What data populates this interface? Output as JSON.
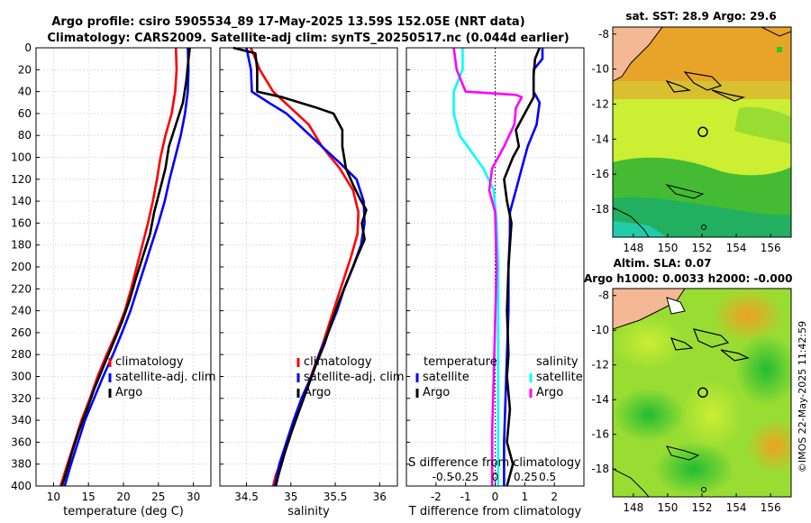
{
  "header": {
    "line1": "Argo profile: csiro 5905534_89 17-May-2025 13.59S 152.05E (NRT data)",
    "line2": "Climatology: CARS2009. Satellite-adj clim: synTS_20250517.nc (0.044d earlier)"
  },
  "side_label": "©IMOS 22-May-2025 11:42:59",
  "colors": {
    "climatology": "#ff0000",
    "satellite": "#0000ff",
    "argo": "#000000",
    "salinity_sat": "#00ffff",
    "salinity_argo": "#ff00ff",
    "land": "#f5b895",
    "map_green": "#44cc22",
    "map_yellow": "#ccee33",
    "map_orange": "#f0a020",
    "map_teal": "#22bb88"
  },
  "chart_data": [
    {
      "type": "line",
      "id": "temperature",
      "xlabel": "temperature (deg C)",
      "ylim": [
        0,
        400
      ],
      "xlim": [
        7.5,
        32.5
      ],
      "xticks": [
        10,
        15,
        20,
        25,
        30
      ],
      "yticks": [
        0,
        20,
        40,
        60,
        80,
        100,
        120,
        140,
        160,
        180,
        200,
        220,
        240,
        260,
        280,
        300,
        320,
        340,
        360,
        380,
        400
      ],
      "legend": [
        "climatology",
        "satellite-adj. clim",
        "Argo"
      ],
      "series": [
        {
          "name": "climatology",
          "color": "#ff0000",
          "points": [
            [
              27.5,
              0
            ],
            [
              27.6,
              20
            ],
            [
              27.4,
              40
            ],
            [
              26.9,
              60
            ],
            [
              26.0,
              80
            ],
            [
              25.3,
              100
            ],
            [
              24.8,
              120
            ],
            [
              24.2,
              140
            ],
            [
              23.5,
              160
            ],
            [
              22.7,
              180
            ],
            [
              21.9,
              200
            ],
            [
              21.1,
              220
            ],
            [
              20.2,
              240
            ],
            [
              19.0,
              260
            ],
            [
              17.6,
              280
            ],
            [
              16.3,
              300
            ],
            [
              15.2,
              320
            ],
            [
              14.0,
              340
            ],
            [
              13.0,
              360
            ],
            [
              12.0,
              380
            ],
            [
              11.0,
              400
            ]
          ]
        },
        {
          "name": "satellite-adj. clim",
          "color": "#0000ff",
          "points": [
            [
              29.2,
              0
            ],
            [
              29.3,
              20
            ],
            [
              29.2,
              40
            ],
            [
              28.8,
              60
            ],
            [
              28.2,
              80
            ],
            [
              27.4,
              100
            ],
            [
              26.6,
              120
            ],
            [
              25.9,
              140
            ],
            [
              25.0,
              160
            ],
            [
              24.0,
              180
            ],
            [
              23.0,
              200
            ],
            [
              22.0,
              220
            ],
            [
              21.0,
              240
            ],
            [
              19.8,
              260
            ],
            [
              18.5,
              280
            ],
            [
              17.1,
              300
            ],
            [
              15.8,
              320
            ],
            [
              14.5,
              340
            ],
            [
              13.5,
              360
            ],
            [
              12.5,
              380
            ],
            [
              11.6,
              400
            ]
          ]
        },
        {
          "name": "Argo",
          "color": "#000000",
          "points": [
            [
              29.5,
              0
            ],
            [
              29.3,
              10
            ],
            [
              29.0,
              30
            ],
            [
              28.5,
              50
            ],
            [
              27.5,
              70
            ],
            [
              26.5,
              90
            ],
            [
              26.0,
              110
            ],
            [
              25.2,
              130
            ],
            [
              24.4,
              150
            ],
            [
              23.8,
              170
            ],
            [
              22.8,
              190
            ],
            [
              21.8,
              210
            ],
            [
              20.9,
              230
            ],
            [
              19.8,
              250
            ],
            [
              18.5,
              270
            ],
            [
              17.2,
              290
            ],
            [
              15.9,
              310
            ],
            [
              14.8,
              330
            ],
            [
              13.6,
              350
            ],
            [
              12.6,
              370
            ],
            [
              11.7,
              390
            ],
            [
              11.2,
              400
            ]
          ]
        }
      ]
    },
    {
      "type": "line",
      "id": "salinity",
      "xlabel": "salinity",
      "ylim": [
        0,
        400
      ],
      "xlim": [
        34.2,
        36.2
      ],
      "xticks": [
        34.5,
        35,
        35.5,
        36
      ],
      "legend": [
        "climatology",
        "satellite-adj. clim",
        "Argo"
      ],
      "series": [
        {
          "name": "climatology",
          "color": "#ff0000",
          "points": [
            [
              34.55,
              0
            ],
            [
              34.65,
              20
            ],
            [
              34.8,
              40
            ],
            [
              35.0,
              55
            ],
            [
              35.2,
              70
            ],
            [
              35.35,
              90
            ],
            [
              35.55,
              110
            ],
            [
              35.7,
              130
            ],
            [
              35.76,
              150
            ],
            [
              35.75,
              170
            ],
            [
              35.68,
              190
            ],
            [
              35.6,
              210
            ],
            [
              35.52,
              230
            ],
            [
              35.44,
              250
            ],
            [
              35.36,
              270
            ],
            [
              35.27,
              290
            ],
            [
              35.18,
              310
            ],
            [
              35.09,
              330
            ],
            [
              35.0,
              350
            ],
            [
              34.92,
              370
            ],
            [
              34.83,
              390
            ],
            [
              34.8,
              400
            ]
          ]
        },
        {
          "name": "satellite-adj. clim",
          "color": "#0000ff",
          "points": [
            [
              34.5,
              0
            ],
            [
              34.55,
              20
            ],
            [
              34.56,
              40
            ],
            [
              34.75,
              50
            ],
            [
              34.95,
              60
            ],
            [
              35.15,
              75
            ],
            [
              35.35,
              90
            ],
            [
              35.55,
              105
            ],
            [
              35.74,
              120
            ],
            [
              35.82,
              140
            ],
            [
              35.83,
              160
            ],
            [
              35.79,
              180
            ],
            [
              35.7,
              200
            ],
            [
              35.6,
              220
            ],
            [
              35.52,
              240
            ],
            [
              35.42,
              260
            ],
            [
              35.32,
              280
            ],
            [
              35.23,
              300
            ],
            [
              35.12,
              320
            ],
            [
              35.03,
              340
            ],
            [
              34.95,
              360
            ],
            [
              34.87,
              380
            ],
            [
              34.82,
              400
            ]
          ]
        },
        {
          "name": "Argo",
          "color": "#000000",
          "points": [
            [
              34.35,
              0
            ],
            [
              34.6,
              5
            ],
            [
              34.62,
              20
            ],
            [
              34.62,
              40
            ],
            [
              34.9,
              45
            ],
            [
              35.1,
              50
            ],
            [
              35.3,
              55
            ],
            [
              35.48,
              60
            ],
            [
              35.58,
              75
            ],
            [
              35.58,
              90
            ],
            [
              35.62,
              110
            ],
            [
              35.7,
              125
            ],
            [
              35.78,
              138
            ],
            [
              35.85,
              148
            ],
            [
              35.8,
              160
            ],
            [
              35.83,
              175
            ],
            [
              35.75,
              190
            ],
            [
              35.65,
              210
            ],
            [
              35.55,
              230
            ],
            [
              35.46,
              250
            ],
            [
              35.38,
              270
            ],
            [
              35.28,
              290
            ],
            [
              35.19,
              310
            ],
            [
              35.1,
              330
            ],
            [
              35.01,
              350
            ],
            [
              34.93,
              370
            ],
            [
              34.86,
              390
            ],
            [
              34.83,
              400
            ]
          ]
        }
      ]
    },
    {
      "type": "line",
      "id": "difference",
      "xlabel": "T difference from climatology",
      "top_axis_label": "S difference from climatology",
      "ylim": [
        0,
        400
      ],
      "xlim": [
        -3,
        3
      ],
      "xticks": [
        -2,
        -1,
        0,
        1,
        2
      ],
      "top_ticks": [
        "-0.5",
        "-0.25",
        "0",
        "0.25",
        "0.5"
      ],
      "legend_left_title": "temperature",
      "legend_right_title": "salinity",
      "legend": [
        "satellite",
        "Argo",
        "satellite",
        "Argo"
      ],
      "series": [
        {
          "name": "T satellite",
          "color": "#0000ff",
          "points": [
            [
              1.6,
              0
            ],
            [
              1.6,
              10
            ],
            [
              1.3,
              20
            ],
            [
              1.3,
              40
            ],
            [
              1.5,
              50
            ],
            [
              1.4,
              70
            ],
            [
              1.1,
              90
            ],
            [
              0.9,
              110
            ],
            [
              0.7,
              130
            ],
            [
              0.5,
              150
            ],
            [
              0.5,
              170
            ],
            [
              0.45,
              200
            ],
            [
              0.45,
              240
            ],
            [
              0.4,
              280
            ],
            [
              0.35,
              320
            ],
            [
              0.3,
              360
            ],
            [
              0.3,
              400
            ]
          ]
        },
        {
          "name": "T Argo",
          "color": "#000000",
          "points": [
            [
              1.5,
              0
            ],
            [
              1.35,
              10
            ],
            [
              1.3,
              25
            ],
            [
              1.3,
              45
            ],
            [
              1.0,
              60
            ],
            [
              0.7,
              75
            ],
            [
              0.8,
              90
            ],
            [
              0.6,
              100
            ],
            [
              0.3,
              120
            ],
            [
              0.4,
              140
            ],
            [
              0.55,
              160
            ],
            [
              0.5,
              180
            ],
            [
              0.45,
              200
            ],
            [
              0.4,
              240
            ],
            [
              0.45,
              280
            ],
            [
              0.4,
              300
            ],
            [
              0.5,
              330
            ],
            [
              0.4,
              360
            ],
            [
              0.6,
              380
            ],
            [
              0.4,
              400
            ]
          ]
        },
        {
          "name": "S satellite",
          "color": "#00ffff",
          "points": [
            [
              -1.1,
              0
            ],
            [
              -1.1,
              20
            ],
            [
              -1.4,
              40
            ],
            [
              -1.4,
              60
            ],
            [
              -1.2,
              80
            ],
            [
              -0.8,
              95
            ],
            [
              -0.4,
              110
            ],
            [
              -0.05,
              130
            ],
            [
              0.05,
              160
            ],
            [
              0.1,
              200
            ],
            [
              0.1,
              250
            ],
            [
              0.1,
              300
            ],
            [
              0.1,
              350
            ],
            [
              0.1,
              400
            ]
          ]
        },
        {
          "name": "S Argo",
          "color": "#ff00ff",
          "points": [
            [
              -1.4,
              0
            ],
            [
              -1.3,
              20
            ],
            [
              -1.0,
              40
            ],
            [
              0.7,
              43
            ],
            [
              0.9,
              45
            ],
            [
              0.7,
              55
            ],
            [
              0.65,
              70
            ],
            [
              0.3,
              90
            ],
            [
              -0.1,
              110
            ],
            [
              -0.2,
              130
            ],
            [
              0.0,
              150
            ],
            [
              0.05,
              200
            ],
            [
              0.0,
              250
            ],
            [
              -0.05,
              300
            ],
            [
              -0.1,
              350
            ],
            [
              -0.1,
              400
            ]
          ]
        }
      ]
    },
    {
      "type": "heatmap",
      "id": "sst-map",
      "title": "sat. SST: 28.9 Argo: 29.6",
      "xticks": [
        148,
        150,
        152,
        154,
        156
      ],
      "yticks": [
        -8,
        -10,
        -12,
        -14,
        -16,
        -18
      ],
      "xlim": [
        146.8,
        157.2
      ],
      "ylim": [
        -19.6,
        -7.6
      ],
      "argo_location": [
        152.05,
        -13.59
      ]
    },
    {
      "type": "heatmap",
      "id": "sla-map",
      "title1": "Altim. SLA: 0.07",
      "title2": "Argo h1000: 0.0033 h2000: -0.000",
      "xticks": [
        148,
        150,
        152,
        154,
        156
      ],
      "yticks": [
        -8,
        -10,
        -12,
        -14,
        -16,
        -18
      ],
      "xlim": [
        146.8,
        157.2
      ],
      "ylim": [
        -19.6,
        -7.6
      ],
      "argo_location": [
        152.05,
        -13.59
      ]
    }
  ]
}
